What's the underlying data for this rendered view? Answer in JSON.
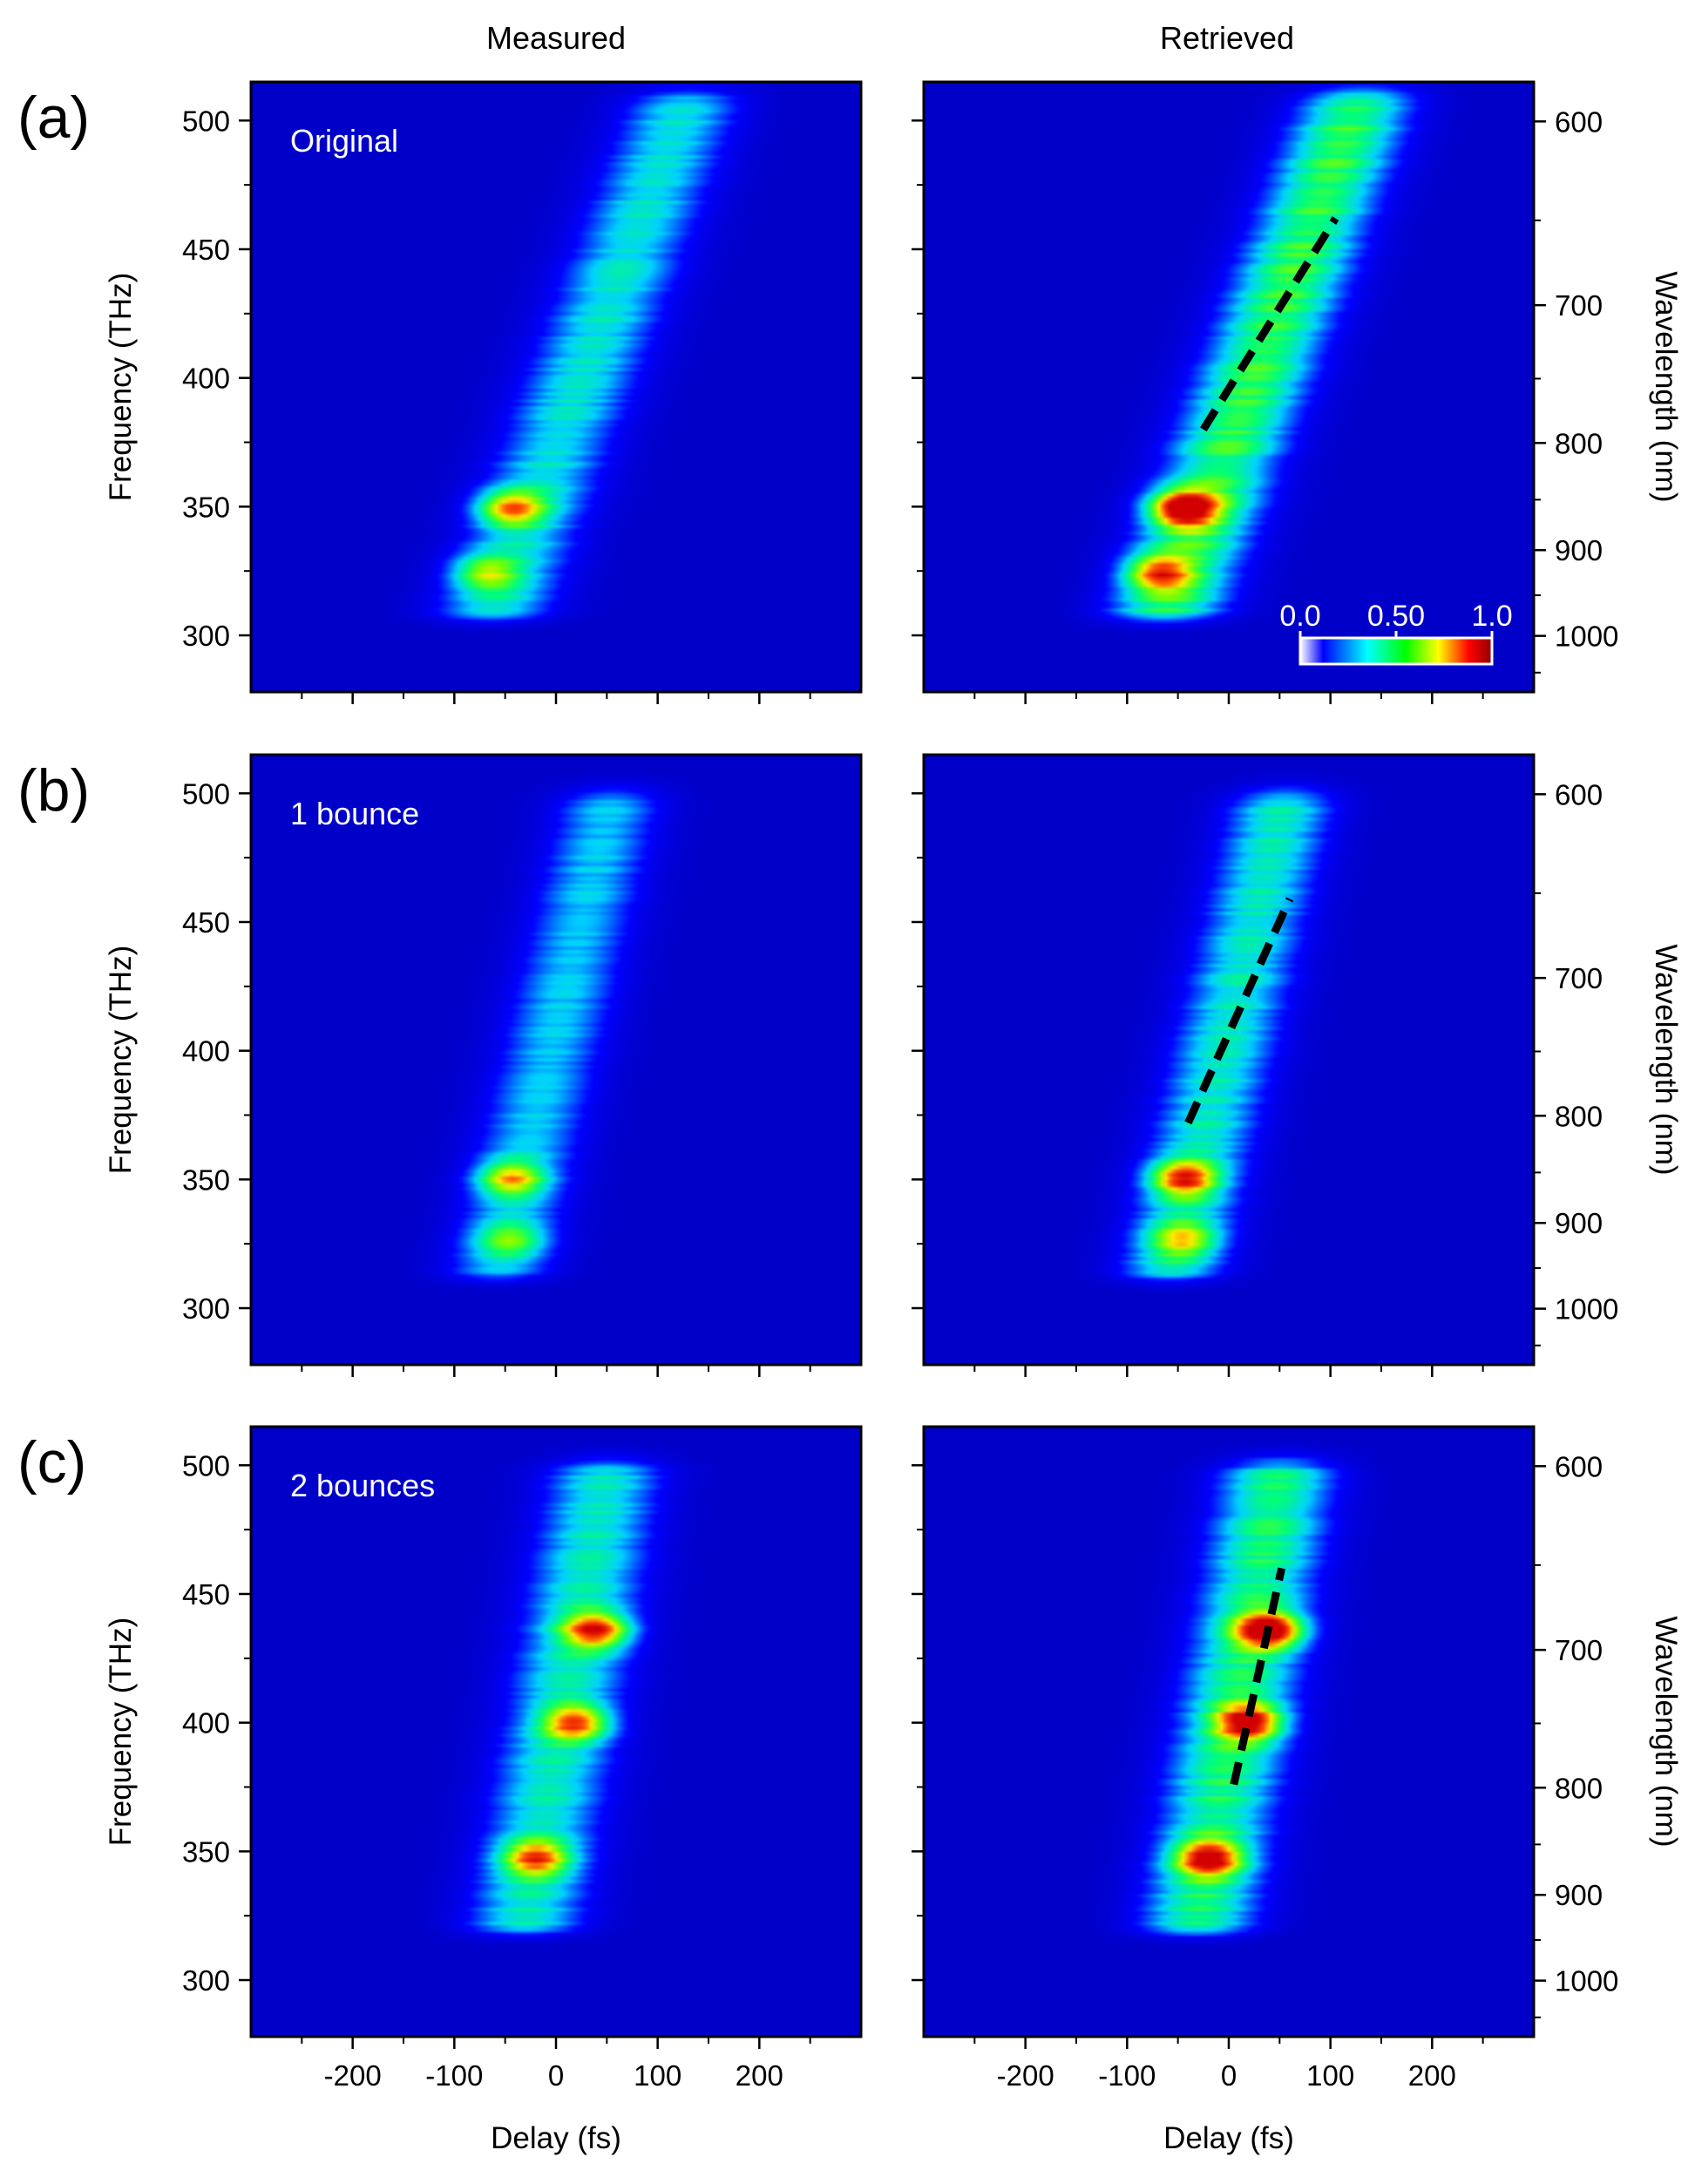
{
  "column_titles": [
    "Measured",
    "Retrieved"
  ],
  "chart_data": {
    "type": "heatmap",
    "description_axes": {
      "xlabel": "Delay (fs)",
      "ylabel": "Frequency (THz)",
      "y2label": "Wavelength (nm)",
      "xlim": [
        -300,
        300
      ],
      "ylim": [
        278,
        515
      ],
      "x_ticks": [
        -200,
        -100,
        0,
        100,
        200
      ],
      "y_ticks": [
        300,
        350,
        400,
        450,
        500
      ],
      "y2_ticks": [
        600,
        700,
        800,
        900,
        1000
      ]
    },
    "colorbar": {
      "labels": [
        "0.0",
        "0.50",
        "1.0"
      ],
      "range": [
        0,
        1
      ],
      "colors": [
        "#ffffff",
        "#0000ff",
        "#00ffff",
        "#00ff00",
        "#ffff00",
        "#ff0000",
        "#800000"
      ]
    },
    "rows": [
      {
        "label": "(a)",
        "note": "Original",
        "trace": {
          "center_delay_at_300THz": -70,
          "slope_fs_per_THz": 0.95,
          "width_fs": 55,
          "freq_range": [
            310,
            505
          ],
          "peaks": [
            {
              "delay": -45,
              "freq": 349,
              "value": 0.8
            },
            {
              "delay": -70,
              "freq": 324,
              "value": 0.55
            }
          ]
        },
        "measured_peak": 0.7,
        "retrieved_peak": 1.0,
        "dashed_line": {
          "start": [
            -25,
            380
          ],
          "end": [
            105,
            462
          ]
        }
      },
      {
        "label": "(b)",
        "note": "1 bounce",
        "trace": {
          "center_delay_at_300THz": -65,
          "slope_fs_per_THz": 0.6,
          "width_fs": 50,
          "freq_range": [
            315,
            495
          ],
          "peaks": [
            {
              "delay": -45,
              "freq": 350,
              "value": 0.85
            },
            {
              "delay": -45,
              "freq": 326,
              "value": 0.5
            }
          ]
        },
        "measured_peak": 0.6,
        "retrieved_peak": 0.75,
        "dashed_line": {
          "start": [
            -40,
            372
          ],
          "end": [
            60,
            459
          ]
        }
      },
      {
        "label": "(c)",
        "note": "2 bounces",
        "trace": {
          "center_delay_at_300THz": -40,
          "slope_fs_per_THz": 0.45,
          "width_fs": 55,
          "freq_range": [
            322,
            495
          ],
          "peaks": [
            {
              "delay": -20,
              "freq": 347,
              "value": 0.75
            },
            {
              "delay": 40,
              "freq": 436,
              "value": 0.9
            },
            {
              "delay": 20,
              "freq": 400,
              "value": 0.8
            }
          ]
        },
        "measured_peak": 0.75,
        "retrieved_peak": 0.9,
        "dashed_line": {
          "start": [
            5,
            376
          ],
          "end": [
            52,
            460
          ]
        }
      }
    ]
  }
}
